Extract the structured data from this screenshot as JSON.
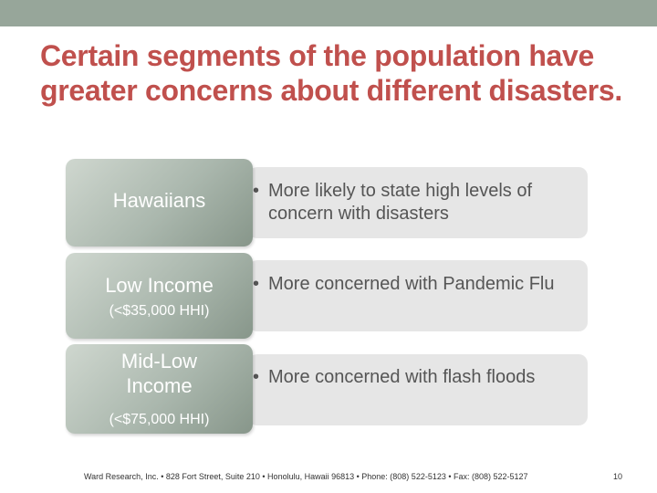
{
  "slide": {
    "title": "Certain segments of the population have greater concerns about different disasters.",
    "colors": {
      "title": "#c0504d",
      "top_bar": "#97a69a",
      "label_box": "#aab7ad",
      "content_box": "#e6e6e6",
      "text": "#555555"
    },
    "rows": [
      {
        "label": "Hawaiians",
        "sublabel": "",
        "bullet": "•",
        "text": "More likely to state high levels of concern with disasters"
      },
      {
        "label": "Low Income",
        "sublabel": "(<$35,000 HHI)",
        "bullet": "•",
        "text": "More concerned with Pandemic Flu"
      },
      {
        "label": "Mid-Low Income",
        "sublabel": "(<$75,000 HHI)",
        "bullet": "•",
        "text": "More concerned with flash floods"
      }
    ],
    "footer": "Ward Research, Inc. • 828 Fort Street, Suite 210 • Honolulu, Hawaii 96813 • Phone: (808) 522-5123 • Fax: (808) 522-5127",
    "page_number": "10"
  }
}
